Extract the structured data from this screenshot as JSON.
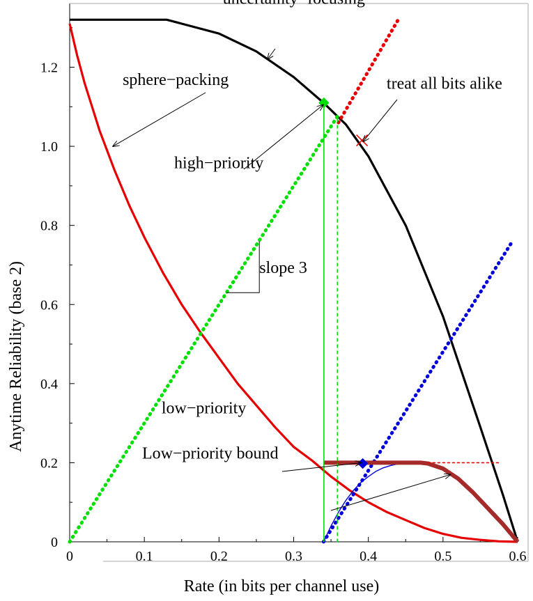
{
  "chart_data": {
    "type": "line",
    "xlabel": "Rate (in bits per channel use)",
    "ylabel": "Anytime Reliability (base 2)",
    "xlim": [
      0,
      0.6
    ],
    "ylim": [
      0,
      1.32
    ],
    "x_ticks": [
      {
        "value": 0,
        "label": "0"
      },
      {
        "value": 0.1,
        "label": "0.1"
      },
      {
        "value": 0.2,
        "label": "0.2"
      },
      {
        "value": 0.3,
        "label": "0.3"
      },
      {
        "value": 0.4,
        "label": "0.4"
      },
      {
        "value": 0.5,
        "label": "0.5"
      },
      {
        "value": 0.6,
        "label": "0.6"
      }
    ],
    "y_ticks": [
      {
        "value": 0,
        "label": "0"
      },
      {
        "value": 0.2,
        "label": "0.2"
      },
      {
        "value": 0.4,
        "label": "0.4"
      },
      {
        "value": 0.6,
        "label": "0.6"
      },
      {
        "value": 0.8,
        "label": "0.8"
      },
      {
        "value": 1.0,
        "label": "1.0"
      },
      {
        "value": 1.2,
        "label": "1.2"
      }
    ],
    "grid": false,
    "series": [
      {
        "key": "uncertainty-focusing",
        "color": "#000000",
        "width": 3.2,
        "dash": "",
        "x": [
          0,
          0.05,
          0.1,
          0.13,
          0.15,
          0.2,
          0.25,
          0.3,
          0.34,
          0.37,
          0.4,
          0.45,
          0.5,
          0.55,
          0.58,
          0.6
        ],
        "y": [
          1.32,
          1.32,
          1.32,
          1.32,
          1.31,
          1.285,
          1.24,
          1.175,
          1.11,
          1.055,
          0.975,
          0.8,
          0.57,
          0.29,
          0.12,
          0
        ]
      },
      {
        "key": "sphere-packing",
        "color": "#e60000",
        "width": 3.2,
        "dash": "",
        "x": [
          0,
          0.01,
          0.02,
          0.04,
          0.06,
          0.08,
          0.1,
          0.125,
          0.15,
          0.175,
          0.2,
          0.225,
          0.25,
          0.275,
          0.3,
          0.325,
          0.35,
          0.375,
          0.4,
          0.425,
          0.45,
          0.475,
          0.5,
          0.525,
          0.55,
          0.575,
          0.6
        ],
        "y": [
          1.31,
          1.23,
          1.16,
          1.04,
          0.94,
          0.85,
          0.77,
          0.68,
          0.6,
          0.53,
          0.465,
          0.4,
          0.345,
          0.29,
          0.24,
          0.205,
          0.165,
          0.13,
          0.1,
          0.075,
          0.055,
          0.035,
          0.02,
          0.01,
          0.005,
          0.001,
          0
        ]
      },
      {
        "key": "treat-all-bits-alike-line",
        "color": "#e60000",
        "width": 5,
        "dash": "1 7",
        "x": [
          0.36,
          0.44
        ],
        "y": [
          1.06,
          1.32
        ]
      },
      {
        "key": "green-slope-3-line",
        "color": "#00e000",
        "width": 5,
        "dash": "1 7",
        "x": [
          0,
          0.36
        ],
        "y": [
          0,
          1.08
        ]
      },
      {
        "key": "blue-slope-3-line",
        "color": "#0000d8",
        "width": 5,
        "dash": "1 7",
        "x": [
          0.34,
          0.593
        ],
        "y": [
          0,
          0.76
        ]
      },
      {
        "key": "blue-thin-curve",
        "color": "#0000d8",
        "width": 1.4,
        "dash": "",
        "x": [
          0.34,
          0.35,
          0.36,
          0.37,
          0.38,
          0.39,
          0.4,
          0.41,
          0.42,
          0.43,
          0.44,
          0.45,
          0.46,
          0.47
        ],
        "y": [
          0,
          0.04,
          0.075,
          0.105,
          0.13,
          0.15,
          0.165,
          0.178,
          0.187,
          0.193,
          0.197,
          0.199,
          0.2,
          0.2
        ]
      },
      {
        "key": "low-priority-bound",
        "color": "#a52a2a",
        "width": 6,
        "dash": "",
        "x": [
          0.34,
          0.34,
          0.4,
          0.47,
          0.48,
          0.5,
          0.52,
          0.54,
          0.56,
          0.58,
          0.6
        ],
        "y": [
          0.2,
          0.2,
          0.2,
          0.2,
          0.198,
          0.185,
          0.16,
          0.125,
          0.085,
          0.045,
          0
        ]
      },
      {
        "key": "red-dotted-horizontal",
        "color": "#e60000",
        "width": 1.6,
        "dash": "3 4",
        "x": [
          0.48,
          0.578
        ],
        "y": [
          0.2,
          0.2
        ]
      },
      {
        "key": "green-vertical-solid",
        "color": "#00e000",
        "width": 1.6,
        "dash": "",
        "x": [
          0.3405,
          0.3405
        ],
        "y": [
          0,
          1.11
        ]
      },
      {
        "key": "green-vertical-dashed",
        "color": "#00e000",
        "width": 1.6,
        "dash": "4 5",
        "x": [
          0.3585,
          0.3585
        ],
        "y": [
          0,
          1.07
        ]
      }
    ],
    "points": [
      {
        "key": "high-priority-point",
        "x": 0.3405,
        "y": 1.11,
        "color": "#00e000",
        "shape": "diamond"
      },
      {
        "key": "low-priority-point",
        "x": 0.3925,
        "y": 0.198,
        "color": "#0000d8",
        "shape": "diamond"
      },
      {
        "key": "treat-all-bits-alike-point",
        "x": 0.3915,
        "y": 1.015,
        "color": "#e60000",
        "shape": "cross"
      }
    ],
    "annotations": [
      {
        "key": "uncertainty-focusing",
        "text": "uncertainty−focusing",
        "x": 0.205,
        "y": 1.36,
        "arrow_to": [
          0.265,
          1.22
        ]
      },
      {
        "key": "sphere-packing",
        "text": "sphere−packing",
        "x": 0.071,
        "y": 1.155,
        "arrow_to": [
          0.058,
          1.0
        ]
      },
      {
        "key": "treat-all-bits-alike",
        "text": "treat all bits alike",
        "x": 0.4245,
        "y": 1.145,
        "arrow_to": [
          0.393,
          1.012
        ]
      },
      {
        "key": "high-priority",
        "text": "high−priority",
        "x": 0.14,
        "y": 0.945,
        "arrow_to": [
          0.3395,
          1.105
        ]
      },
      {
        "key": "slope-3",
        "text": "slope 3",
        "x": 0.254,
        "y": 0.68
      },
      {
        "key": "low-priority",
        "text": "low−priority",
        "x": 0.123,
        "y": 0.325,
        "arrow_to": [
          0.3905,
          0.2
        ]
      },
      {
        "key": "low-priority-bound",
        "text": "Low−priority bound",
        "x": 0.097,
        "y": 0.21,
        "arrow_to": [
          0.51,
          0.17
        ]
      }
    ]
  }
}
